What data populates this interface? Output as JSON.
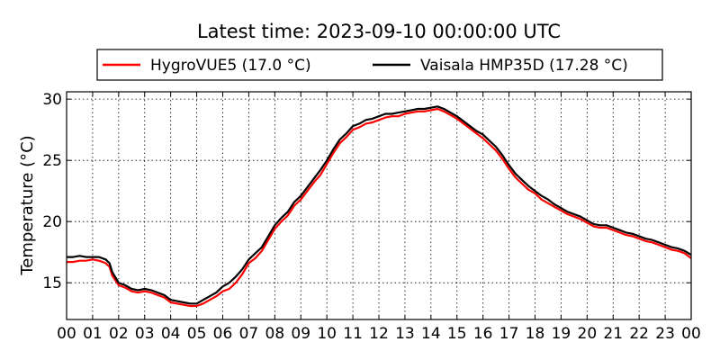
{
  "chart_data": {
    "type": "line",
    "title": "Latest time: 2023-09-10 00:00:00 UTC",
    "xlabel": "",
    "ylabel": "Temperature (°C)",
    "xlim": [
      0,
      24
    ],
    "ylim": [
      12,
      30.6
    ],
    "x_ticks": [
      0,
      1,
      2,
      3,
      4,
      5,
      6,
      7,
      8,
      9,
      10,
      11,
      12,
      13,
      14,
      15,
      16,
      17,
      18,
      19,
      20,
      21,
      22,
      23,
      24
    ],
    "x_tick_labels": [
      "00",
      "01",
      "02",
      "03",
      "04",
      "05",
      "06",
      "07",
      "08",
      "09",
      "10",
      "11",
      "12",
      "13",
      "14",
      "15",
      "16",
      "17",
      "18",
      "19",
      "20",
      "21",
      "22",
      "23",
      "00"
    ],
    "y_ticks": [
      15,
      20,
      25,
      30
    ],
    "y_tick_labels": [
      "15",
      "20",
      "25",
      "30"
    ],
    "grid": true,
    "legend_position": "top",
    "x": [
      0,
      0.25,
      0.5,
      0.75,
      1,
      1.25,
      1.5,
      1.65,
      1.75,
      2,
      2.25,
      2.5,
      2.75,
      3,
      3.25,
      3.5,
      3.75,
      4,
      4.25,
      4.5,
      4.75,
      5,
      5.25,
      5.5,
      5.75,
      6,
      6.25,
      6.5,
      6.75,
      7,
      7.25,
      7.5,
      7.75,
      8,
      8.25,
      8.5,
      8.75,
      9,
      9.25,
      9.5,
      9.75,
      10,
      10.25,
      10.5,
      10.75,
      11,
      11.25,
      11.5,
      11.75,
      12,
      12.25,
      12.5,
      12.75,
      13,
      13.25,
      13.5,
      13.75,
      14,
      14.25,
      14.5,
      14.75,
      15,
      15.25,
      15.5,
      15.75,
      16,
      16.25,
      16.5,
      16.75,
      17,
      17.25,
      17.5,
      17.75,
      18,
      18.25,
      18.5,
      18.75,
      19,
      19.25,
      19.5,
      19.75,
      20,
      20.25,
      20.5,
      20.75,
      21,
      21.25,
      21.5,
      21.75,
      22,
      22.25,
      22.5,
      22.75,
      23,
      23.25,
      23.5,
      23.75,
      24
    ],
    "series": [
      {
        "name": "HygroVUE5 (17.0 °C)",
        "color": "#ff0000",
        "values": [
          16.7,
          16.7,
          16.8,
          16.8,
          16.9,
          16.8,
          16.6,
          16.3,
          15.6,
          14.8,
          14.6,
          14.3,
          14.2,
          14.3,
          14.2,
          14.0,
          13.8,
          13.4,
          13.3,
          13.2,
          13.1,
          13.1,
          13.3,
          13.6,
          13.9,
          14.3,
          14.5,
          15.0,
          15.7,
          16.6,
          17.0,
          17.6,
          18.5,
          19.4,
          20.0,
          20.5,
          21.3,
          21.8,
          22.5,
          23.2,
          23.8,
          24.7,
          25.6,
          26.4,
          26.9,
          27.5,
          27.7,
          28.0,
          28.1,
          28.3,
          28.5,
          28.6,
          28.6,
          28.8,
          28.9,
          29.0,
          29.0,
          29.1,
          29.2,
          29.0,
          28.7,
          28.4,
          28.0,
          27.6,
          27.2,
          26.8,
          26.3,
          25.8,
          25.1,
          24.3,
          23.6,
          23.1,
          22.6,
          22.3,
          21.8,
          21.5,
          21.2,
          20.9,
          20.6,
          20.4,
          20.2,
          19.9,
          19.6,
          19.5,
          19.5,
          19.3,
          19.1,
          18.9,
          18.8,
          18.6,
          18.4,
          18.3,
          18.1,
          17.9,
          17.7,
          17.6,
          17.4,
          17.0
        ]
      },
      {
        "name": "Vaisala HMP35D (17.28 °C)",
        "color": "#000000",
        "values": [
          17.1,
          17.1,
          17.2,
          17.1,
          17.1,
          17.1,
          16.9,
          16.6,
          15.9,
          15.0,
          14.8,
          14.5,
          14.4,
          14.5,
          14.4,
          14.2,
          14.0,
          13.6,
          13.5,
          13.4,
          13.3,
          13.3,
          13.6,
          13.9,
          14.2,
          14.7,
          15.0,
          15.5,
          16.1,
          16.9,
          17.4,
          17.9,
          18.8,
          19.7,
          20.3,
          20.8,
          21.6,
          22.1,
          22.8,
          23.5,
          24.2,
          25.0,
          25.9,
          26.7,
          27.2,
          27.8,
          28.0,
          28.3,
          28.4,
          28.6,
          28.8,
          28.8,
          28.9,
          29.0,
          29.1,
          29.2,
          29.2,
          29.3,
          29.4,
          29.2,
          28.9,
          28.6,
          28.2,
          27.8,
          27.4,
          27.1,
          26.6,
          26.1,
          25.4,
          24.6,
          23.9,
          23.4,
          22.9,
          22.5,
          22.1,
          21.8,
          21.4,
          21.1,
          20.8,
          20.6,
          20.4,
          20.1,
          19.8,
          19.7,
          19.7,
          19.5,
          19.3,
          19.1,
          19.0,
          18.8,
          18.6,
          18.5,
          18.3,
          18.1,
          17.9,
          17.8,
          17.6,
          17.28
        ]
      }
    ]
  }
}
